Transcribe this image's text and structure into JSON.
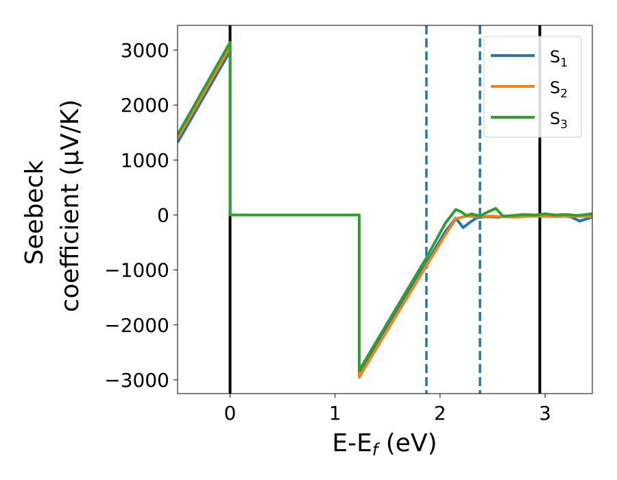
{
  "chart_data": {
    "type": "line",
    "xlabel": "E-E",
    "xlabel_sub": "f",
    "xlabel_unit": " (eV)",
    "ylabel_line1": "Seebeck",
    "ylabel_line2": "coefficient  (μV/K)",
    "xlim": [
      -0.5,
      3.45
    ],
    "ylim": [
      -3250,
      3450
    ],
    "x_ticks": [
      0,
      1,
      2,
      3
    ],
    "x_tick_labels": [
      "0",
      "1",
      "2",
      "3"
    ],
    "y_ticks": [
      -3000,
      -2000,
      -1000,
      0,
      1000,
      2000,
      3000
    ],
    "y_tick_labels": [
      "−3000",
      "−2000",
      "−1000",
      "0",
      "1000",
      "2000",
      "3000"
    ],
    "legend_placement": "top-right",
    "vertical_lines": [
      {
        "x": 0.0,
        "color": "#000000",
        "style": "solid"
      },
      {
        "x": 2.95,
        "color": "#000000",
        "style": "solid"
      },
      {
        "x": 1.87,
        "color": "#1f77b4",
        "style": "dashed"
      },
      {
        "x": 2.38,
        "color": "#1f77b4",
        "style": "dashed"
      }
    ],
    "series": [
      {
        "name": "S",
        "sub": "1",
        "color": "#1f77b4",
        "x": [
          -0.5,
          0.0,
          0.0,
          1.23,
          1.23,
          1.5,
          1.87,
          2.05,
          2.15,
          2.22,
          2.28,
          2.35,
          2.45,
          2.55,
          2.65,
          2.75,
          2.85,
          2.95,
          3.05,
          3.15,
          3.25,
          3.33,
          3.4,
          3.45
        ],
        "y": [
          1320,
          2980,
          0,
          0,
          -2880,
          -2020,
          -880,
          -300,
          -60,
          -230,
          -140,
          -50,
          -30,
          -40,
          -20,
          -30,
          -10,
          0,
          -20,
          -10,
          -40,
          -110,
          -70,
          -40
        ]
      },
      {
        "name": "S",
        "sub": "2",
        "color": "#ff7f0e",
        "x": [
          -0.5,
          0.0,
          0.0,
          1.23,
          1.23,
          1.5,
          1.87,
          2.05,
          2.15,
          2.25,
          2.35,
          2.5,
          2.7,
          2.9,
          3.1,
          3.3,
          3.45
        ],
        "y": [
          1400,
          3060,
          0,
          0,
          -2950,
          -2090,
          -920,
          -360,
          -70,
          -20,
          -30,
          -20,
          -40,
          -20,
          -30,
          -20,
          -30
        ]
      },
      {
        "name": "S",
        "sub": "3",
        "color": "#2ca02c",
        "x": [
          -0.5,
          0.0,
          0.0,
          1.23,
          1.23,
          1.5,
          1.87,
          2.05,
          2.15,
          2.2,
          2.25,
          2.3,
          2.38,
          2.45,
          2.53,
          2.6,
          2.7,
          2.8,
          2.9,
          3.0,
          3.1,
          3.2,
          3.3,
          3.45
        ],
        "y": [
          1460,
          3140,
          0,
          0,
          -2830,
          -1960,
          -780,
          -150,
          100,
          60,
          -10,
          20,
          -20,
          50,
          120,
          -20,
          -10,
          10,
          0,
          20,
          0,
          10,
          -10,
          20
        ]
      }
    ]
  }
}
